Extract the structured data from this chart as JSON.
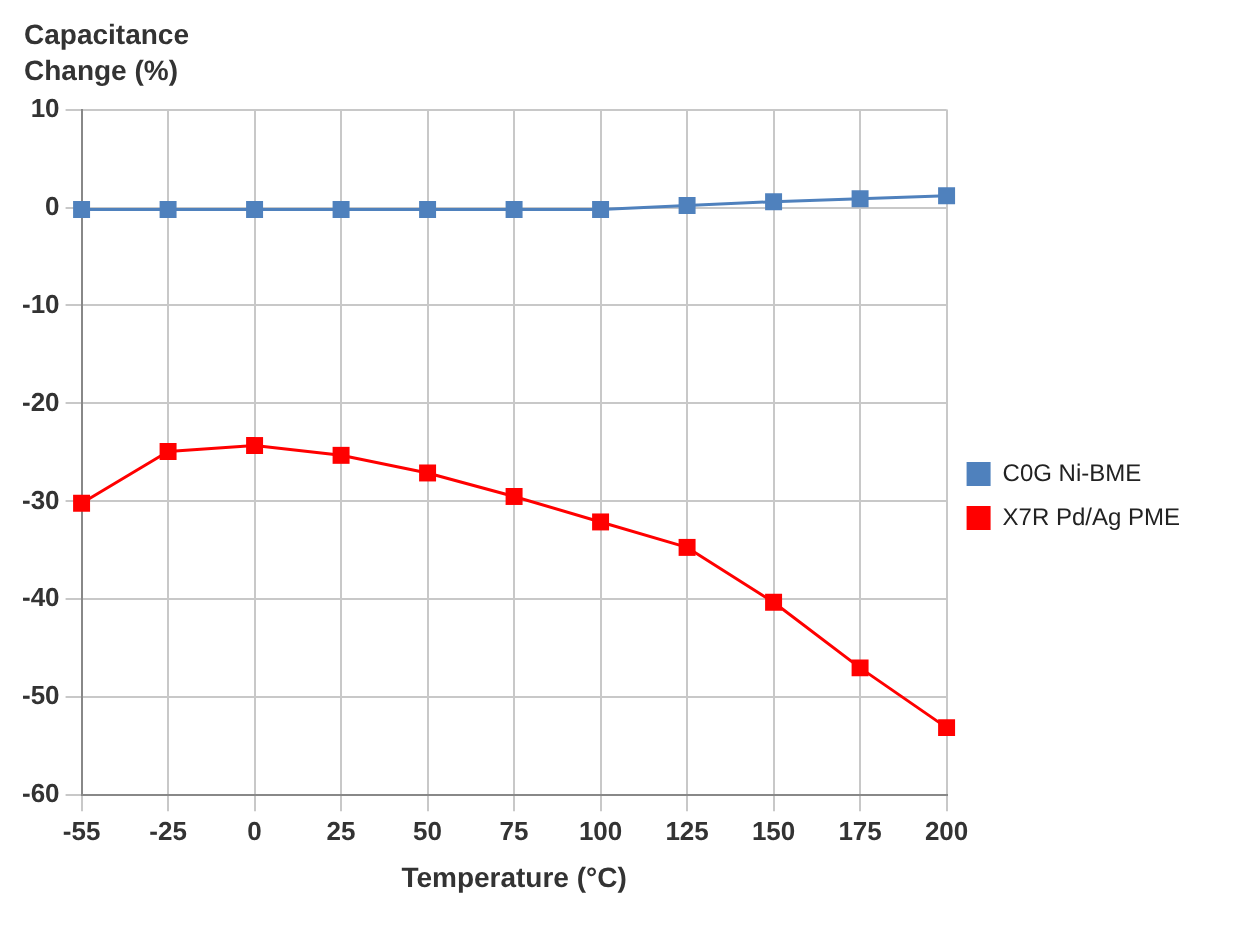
{
  "chart_data": {
    "type": "line",
    "ylabel": "Capacitance Change (%)",
    "xlabel": "Temperature (°C)",
    "categories": [
      "-55",
      "-25",
      "0",
      "25",
      "50",
      "75",
      "100",
      "125",
      "150",
      "175",
      "200"
    ],
    "series": [
      {
        "name": "C0G Ni-BME",
        "color": "#4f81bd",
        "values": [
          -0.2,
          -0.2,
          -0.2,
          -0.2,
          -0.2,
          -0.2,
          -0.2,
          0.2,
          0.6,
          0.9,
          1.2
        ]
      },
      {
        "name": "X7R Pd/Ag PME",
        "color": "#ff0000",
        "values": [
          -30.2,
          -24.9,
          -24.3,
          -25.3,
          -27.1,
          -29.5,
          -32.1,
          -34.7,
          -40.3,
          -47,
          -53.1
        ]
      }
    ],
    "ylim": [
      -60,
      10
    ],
    "yticks": [
      10,
      0,
      -10,
      -20,
      -30,
      -40,
      -50,
      -60
    ],
    "grid": true,
    "legend": "right",
    "marker": "square",
    "line_style": "solid"
  }
}
